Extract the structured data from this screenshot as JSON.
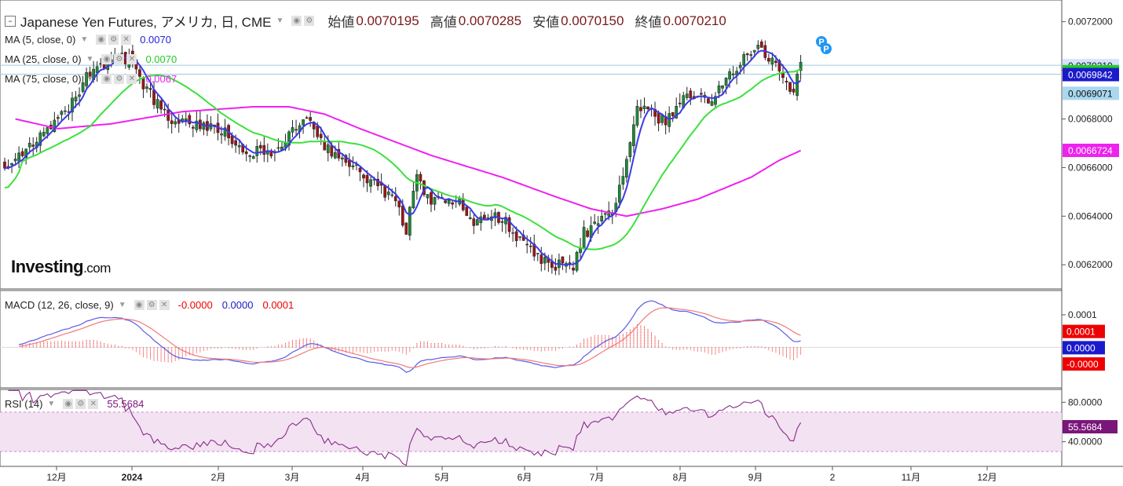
{
  "header": {
    "title": "Japanese Yen Futures, アメリカ, 日, CME",
    "ohlc": [
      {
        "label": "始値",
        "value": "0.0070195"
      },
      {
        "label": "高値",
        "value": "0.0070285"
      },
      {
        "label": "安値",
        "value": "0.0070150"
      },
      {
        "label": "終値",
        "value": "0.0070210"
      }
    ]
  },
  "indicators": {
    "ma5": {
      "label": "MA (5, close, 0)",
      "value": "0.0070",
      "color": "#2222dd"
    },
    "ma25": {
      "label": "MA (25, close, 0)",
      "value": "0.0070",
      "color": "#22cc22"
    },
    "ma75": {
      "label": "MA (75, close, 0)",
      "value": "0.0067",
      "color": "#ee22ee"
    },
    "macd": {
      "label": "MACD (12, 26, close, 9)",
      "v1": "-0.0000",
      "v2": "0.0000",
      "v3": "0.0001"
    },
    "rsi": {
      "label": "RSI (14)",
      "value": "55.5684"
    }
  },
  "logo": {
    "main": "Investing",
    "suffix": ".com"
  },
  "chart_data": {
    "type": "line",
    "title": "Japanese Yen Futures, アメリカ, 日, CME",
    "xlabel": "",
    "ylabel": "",
    "x_ticks": [
      "12月",
      "2024",
      "2月",
      "3月",
      "4月",
      "5月",
      "6月",
      "7月",
      "8月",
      "9月",
      "2",
      "11月",
      "12月"
    ],
    "price_axis": {
      "ticks": [
        "0.0072000",
        "0.0070000",
        "0.0068000",
        "0.0066000",
        "0.0064000",
        "0.0062000"
      ],
      "ylim": [
        0.00612,
        0.00727
      ]
    },
    "price_tags": [
      {
        "value": "0.0070210",
        "y": 0.007021,
        "bg": "#d6e3ff",
        "fg": "#111"
      },
      {
        "value": "0.0069963",
        "y": 0.0069963,
        "bg": "#22cc22",
        "fg": "#111"
      },
      {
        "value": "0.0069842",
        "y": 0.0069842,
        "bg": "#1a1acc",
        "fg": "#fff"
      },
      {
        "value": "0.0069071",
        "y": 0.0069071,
        "bg": "#a9d8ef",
        "fg": "#111"
      },
      {
        "value": "0.0066724",
        "y": 0.0066724,
        "bg": "#ee22ee",
        "fg": "#fff"
      }
    ],
    "close_anchors": [
      [
        0,
        0.00661
      ],
      [
        5,
        0.00667
      ],
      [
        10,
        0.00672
      ],
      [
        15,
        0.00679
      ],
      [
        20,
        0.00688
      ],
      [
        23,
        0.00697
      ],
      [
        28,
        0.00702
      ],
      [
        33,
        0.00706
      ],
      [
        36,
        0.00703
      ],
      [
        40,
        0.00692
      ],
      [
        45,
        0.00682
      ],
      [
        48,
        0.00679
      ],
      [
        55,
        0.00678
      ],
      [
        62,
        0.00674
      ],
      [
        67,
        0.00665
      ],
      [
        72,
        0.00667
      ],
      [
        77,
        0.00667
      ],
      [
        82,
        0.00677
      ],
      [
        86,
        0.00679
      ],
      [
        90,
        0.00669
      ],
      [
        97,
        0.00661
      ],
      [
        102,
        0.00656
      ],
      [
        106,
        0.00651
      ],
      [
        110,
        0.00646
      ],
      [
        113,
        0.00635
      ],
      [
        116,
        0.00655
      ],
      [
        120,
        0.00645
      ],
      [
        124,
        0.00648
      ],
      [
        128,
        0.00645
      ],
      [
        132,
        0.00637
      ],
      [
        137,
        0.0064
      ],
      [
        141,
        0.00638
      ],
      [
        145,
        0.0063
      ],
      [
        150,
        0.00623
      ],
      [
        155,
        0.0062
      ],
      [
        160,
        0.0062
      ],
      [
        163,
        0.00633
      ],
      [
        167,
        0.00637
      ],
      [
        171,
        0.00642
      ],
      [
        174,
        0.00655
      ],
      [
        178,
        0.00684
      ],
      [
        182,
        0.00683
      ],
      [
        186,
        0.00678
      ],
      [
        190,
        0.00688
      ],
      [
        195,
        0.0069
      ],
      [
        199,
        0.00686
      ],
      [
        203,
        0.00697
      ],
      [
        207,
        0.00703
      ],
      [
        212,
        0.00711
      ],
      [
        216,
        0.00703
      ],
      [
        220,
        0.00697
      ],
      [
        222,
        0.0069
      ],
      [
        223,
        0.00699
      ],
      [
        224,
        0.00702
      ]
    ],
    "ma75_anchors": [
      [
        3,
        0.0068
      ],
      [
        15,
        0.00676
      ],
      [
        30,
        0.00678
      ],
      [
        50,
        0.00683
      ],
      [
        70,
        0.00685
      ],
      [
        80,
        0.00685
      ],
      [
        90,
        0.00682
      ],
      [
        100,
        0.00676
      ],
      [
        120,
        0.00665
      ],
      [
        140,
        0.00656
      ],
      [
        155,
        0.00648
      ],
      [
        165,
        0.00643
      ],
      [
        175,
        0.0064
      ],
      [
        185,
        0.00643
      ],
      [
        195,
        0.00647
      ],
      [
        210,
        0.00656
      ],
      [
        218,
        0.00663
      ],
      [
        224,
        0.00667
      ]
    ],
    "macd_axis": {
      "ticks": [
        "0.0001",
        "0.0000"
      ],
      "ylim": [
        -0.000115,
        0.000165
      ]
    },
    "macd_tags": [
      {
        "value": "0.0001",
        "y": 5e-05,
        "bg": "#ee0000",
        "fg": "#fff"
      },
      {
        "value": "0.0000",
        "y": 0.0,
        "bg": "#1a1acc",
        "fg": "#fff"
      },
      {
        "value": "-0.0000",
        "y": -5e-05,
        "bg": "#ee0000",
        "fg": "#fff"
      }
    ],
    "rsi_axis": {
      "ticks": [
        "80.0000",
        "40.0000"
      ],
      "ylim": [
        15,
        93
      ],
      "band": [
        30,
        70
      ]
    },
    "rsi_tag": {
      "value": "55.5684",
      "y": 55.5684,
      "bg": "#7a157a",
      "fg": "#fff"
    }
  }
}
